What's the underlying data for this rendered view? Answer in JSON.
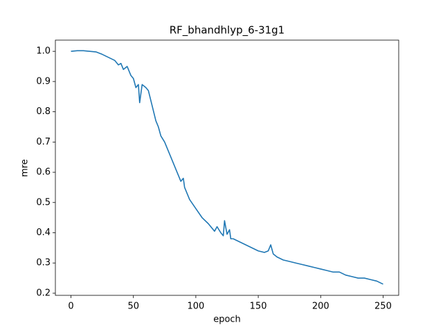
{
  "chart_data": {
    "type": "line",
    "title": "RF_bhandhlyp_6-31g1",
    "x_label": "epoch",
    "y_label": "mre",
    "x": [
      0,
      5,
      10,
      15,
      20,
      25,
      30,
      35,
      38,
      40,
      42,
      45,
      48,
      50,
      52,
      54,
      55,
      57,
      60,
      62,
      65,
      68,
      70,
      72,
      75,
      78,
      80,
      83,
      85,
      88,
      90,
      91,
      95,
      100,
      105,
      110,
      115,
      117,
      120,
      122,
      123,
      125,
      127,
      128,
      130,
      135,
      140,
      145,
      150,
      155,
      158,
      160,
      162,
      165,
      170,
      175,
      180,
      185,
      190,
      195,
      200,
      205,
      210,
      215,
      220,
      225,
      230,
      235,
      240,
      245,
      250
    ],
    "series": [
      {
        "name": "mre",
        "color": "#1f77b4",
        "values": [
          1.0,
          1.002,
          1.002,
          1.0,
          0.998,
          0.99,
          0.98,
          0.97,
          0.955,
          0.96,
          0.94,
          0.95,
          0.92,
          0.91,
          0.88,
          0.89,
          0.83,
          0.89,
          0.88,
          0.87,
          0.82,
          0.77,
          0.75,
          0.72,
          0.7,
          0.67,
          0.65,
          0.62,
          0.6,
          0.57,
          0.58,
          0.55,
          0.51,
          0.48,
          0.45,
          0.43,
          0.405,
          0.42,
          0.4,
          0.39,
          0.44,
          0.395,
          0.41,
          0.38,
          0.38,
          0.37,
          0.36,
          0.35,
          0.34,
          0.335,
          0.34,
          0.36,
          0.33,
          0.32,
          0.31,
          0.305,
          0.3,
          0.295,
          0.29,
          0.285,
          0.28,
          0.275,
          0.27,
          0.27,
          0.26,
          0.255,
          0.25,
          0.25,
          0.245,
          0.24,
          0.23
        ]
      }
    ],
    "xlim": [
      -12.5,
      262.5
    ],
    "ylim": [
      0.193,
      1.037
    ],
    "xticks": [
      0,
      50,
      100,
      150,
      200,
      250
    ],
    "yticks": [
      0.2,
      0.3,
      0.4,
      0.5,
      0.6,
      0.7,
      0.8,
      0.9,
      {
        "value": 1,
        "label": "1.0"
      }
    ]
  }
}
